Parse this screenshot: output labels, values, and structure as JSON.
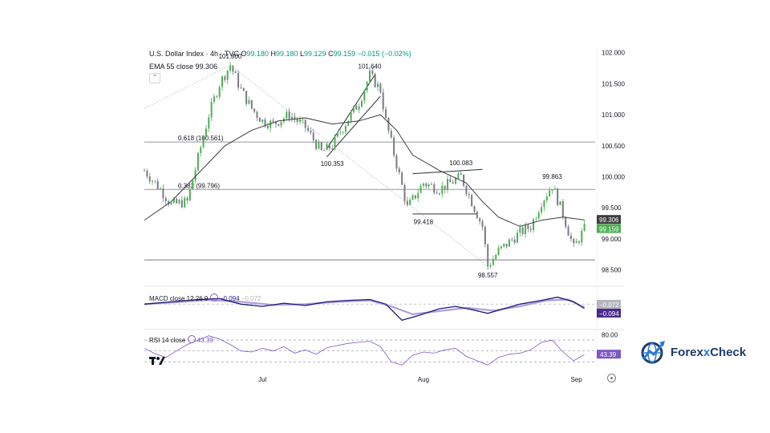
{
  "header": {
    "symbol": "U.S. Dollar Index · 4h · TVC",
    "o_key": "O",
    "o_val": "99.180",
    "h_key": "H",
    "h_val": "99.180",
    "l_key": "L",
    "l_val": "99.129",
    "c_key": "C",
    "c_val": "99.159",
    "change": "−0.015 (−0.02%)"
  },
  "ema_legend": {
    "label": "EMA 55 close",
    "value": "99.306"
  },
  "macd_legend": {
    "label": "MACD close 12 26 9",
    "v1": "−0.094",
    "v2": "−0.072"
  },
  "rsi_legend": {
    "label": "RSI 14 close",
    "value": "43.39"
  },
  "brand": {
    "name_a": "Forex",
    "name_x": "x",
    "name_b": "Check"
  },
  "icons": {
    "tradingview": "tradingview-logo-icon",
    "settings": "gear-icon",
    "brand": "globe-arrow-icon",
    "collapse": "chevron-up-icon"
  },
  "colors": {
    "up": "#4caf50",
    "down": "#787b86",
    "ema": "#3d3d3d",
    "macd": "#1a1a7a",
    "signal": "#b39ddb",
    "rsi": "#7e57c2",
    "brand": "#1f3b6b",
    "accent": "#2b7bd3"
  },
  "chart_data": {
    "type": "candlestick",
    "title": "U.S. Dollar Index · 4h · TVC",
    "x_ticks": [
      "Jul",
      "Aug",
      "Sep"
    ],
    "price_axis": {
      "ylim": [
        98.3,
        102.1
      ],
      "ticks": [
        "102.000",
        "101.500",
        "101.000",
        "100.500",
        "100.000",
        "99.500",
        "99.000",
        "98.500"
      ]
    },
    "price_path": [
      [
        0,
        100.1
      ],
      [
        3,
        99.8
      ],
      [
        5,
        99.55
      ],
      [
        8,
        99.6
      ],
      [
        10,
        100.3
      ],
      [
        12,
        101.0
      ],
      [
        14,
        101.5
      ],
      [
        16,
        101.8
      ],
      [
        18,
        101.4
      ],
      [
        20,
        101.1
      ],
      [
        22,
        100.9
      ],
      [
        24,
        100.85
      ],
      [
        27,
        101.0
      ],
      [
        30,
        100.8
      ],
      [
        33,
        100.4
      ],
      [
        35,
        100.5
      ],
      [
        37,
        100.8
      ],
      [
        40,
        101.2
      ],
      [
        42,
        101.64
      ],
      [
        44,
        101.4
      ],
      [
        45,
        100.9
      ],
      [
        47,
        100.2
      ],
      [
        49,
        99.5
      ],
      [
        52,
        99.9
      ],
      [
        55,
        99.8
      ],
      [
        57,
        99.9
      ],
      [
        59,
        100.0
      ],
      [
        61,
        99.6
      ],
      [
        63,
        99.2
      ],
      [
        64,
        98.56
      ],
      [
        66,
        98.8
      ],
      [
        68,
        98.95
      ],
      [
        70,
        99.1
      ],
      [
        72,
        99.2
      ],
      [
        74,
        99.6
      ],
      [
        76,
        99.86
      ],
      [
        78,
        99.4
      ],
      [
        80,
        98.85
      ],
      [
        82,
        99.16
      ]
    ],
    "ema_path": [
      [
        0,
        99.3
      ],
      [
        5,
        99.6
      ],
      [
        10,
        100.05
      ],
      [
        15,
        100.5
      ],
      [
        20,
        100.75
      ],
      [
        25,
        100.9
      ],
      [
        30,
        100.95
      ],
      [
        35,
        100.85
      ],
      [
        40,
        100.9
      ],
      [
        44,
        101.0
      ],
      [
        47,
        100.75
      ],
      [
        50,
        100.35
      ],
      [
        55,
        100.1
      ],
      [
        60,
        99.9
      ],
      [
        63,
        99.6
      ],
      [
        66,
        99.35
      ],
      [
        70,
        99.2
      ],
      [
        74,
        99.3
      ],
      [
        78,
        99.35
      ],
      [
        82,
        99.306
      ]
    ],
    "annotations": [
      {
        "text": "101.800",
        "x": 16,
        "y": 101.8
      },
      {
        "text": "101.640",
        "x": 42,
        "y": 101.64
      },
      {
        "text": "100.353",
        "x": 35,
        "y": 100.353
      },
      {
        "text": "100.083",
        "x": 59,
        "y": 100.083
      },
      {
        "text": "99.863",
        "x": 76,
        "y": 99.863
      },
      {
        "text": "99.418",
        "x": 52,
        "y": 99.418
      },
      {
        "text": "98.557",
        "x": 64,
        "y": 98.557
      }
    ],
    "fib_levels": [
      {
        "label": "0.618 (100.561)",
        "value": 100.561
      },
      {
        "label": "0.382 (99.796)",
        "value": 99.796
      }
    ],
    "support_level": 98.66,
    "price_labels": [
      {
        "text": "99.306",
        "value": 99.306,
        "color": "#3d3d3d"
      },
      {
        "text": "99.159",
        "value": 99.159,
        "color": "#4caf50"
      }
    ],
    "macd": {
      "ylim": [
        -0.5,
        0.3
      ],
      "macd_path": [
        [
          0,
          0.0
        ],
        [
          5,
          0.05
        ],
        [
          10,
          0.1
        ],
        [
          14,
          0.12
        ],
        [
          18,
          0.0
        ],
        [
          22,
          -0.05
        ],
        [
          26,
          0.02
        ],
        [
          30,
          -0.03
        ],
        [
          34,
          0.05
        ],
        [
          38,
          0.08
        ],
        [
          42,
          0.1
        ],
        [
          45,
          0.0
        ],
        [
          48,
          -0.35
        ],
        [
          51,
          -0.25
        ],
        [
          55,
          -0.1
        ],
        [
          58,
          -0.05
        ],
        [
          61,
          -0.12
        ],
        [
          64,
          -0.2
        ],
        [
          67,
          -0.1
        ],
        [
          70,
          0.0
        ],
        [
          74,
          0.08
        ],
        [
          77,
          0.15
        ],
        [
          80,
          0.05
        ],
        [
          82,
          -0.094
        ]
      ],
      "signal_path": [
        [
          0,
          0.0
        ],
        [
          6,
          0.04
        ],
        [
          12,
          0.09
        ],
        [
          18,
          0.05
        ],
        [
          24,
          -0.02
        ],
        [
          30,
          0.0
        ],
        [
          36,
          0.05
        ],
        [
          42,
          0.08
        ],
        [
          46,
          -0.05
        ],
        [
          50,
          -0.22
        ],
        [
          55,
          -0.15
        ],
        [
          60,
          -0.08
        ],
        [
          65,
          -0.14
        ],
        [
          70,
          -0.05
        ],
        [
          75,
          0.08
        ],
        [
          79,
          0.1
        ],
        [
          82,
          -0.072
        ]
      ],
      "labels": [
        {
          "text": "−0.072",
          "value": -0.072,
          "color": "#b2b5be"
        },
        {
          "text": "−0.094",
          "value": -0.094,
          "color": "#4a2a8c"
        }
      ]
    },
    "rsi": {
      "ylim": [
        20,
        85
      ],
      "levels": [
        70,
        50,
        30
      ],
      "tick": "80.00",
      "tick_value": 80,
      "path": [
        [
          0,
          55
        ],
        [
          2,
          45
        ],
        [
          4,
          38
        ],
        [
          6,
          50
        ],
        [
          8,
          62
        ],
        [
          10,
          70
        ],
        [
          12,
          78
        ],
        [
          14,
          72
        ],
        [
          16,
          62
        ],
        [
          18,
          50
        ],
        [
          20,
          48
        ],
        [
          22,
          55
        ],
        [
          24,
          50
        ],
        [
          26,
          58
        ],
        [
          28,
          46
        ],
        [
          30,
          52
        ],
        [
          32,
          44
        ],
        [
          34,
          56
        ],
        [
          36,
          60
        ],
        [
          38,
          64
        ],
        [
          40,
          66
        ],
        [
          42,
          68
        ],
        [
          44,
          58
        ],
        [
          46,
          30
        ],
        [
          48,
          24
        ],
        [
          50,
          42
        ],
        [
          52,
          48
        ],
        [
          54,
          46
        ],
        [
          56,
          52
        ],
        [
          58,
          55
        ],
        [
          60,
          40
        ],
        [
          62,
          32
        ],
        [
          64,
          24
        ],
        [
          66,
          38
        ],
        [
          68,
          44
        ],
        [
          70,
          46
        ],
        [
          72,
          52
        ],
        [
          74,
          66
        ],
        [
          76,
          70
        ],
        [
          78,
          48
        ],
        [
          80,
          32
        ],
        [
          82,
          43.39
        ]
      ],
      "label": {
        "text": "43.39",
        "value": 43.39
      }
    }
  }
}
